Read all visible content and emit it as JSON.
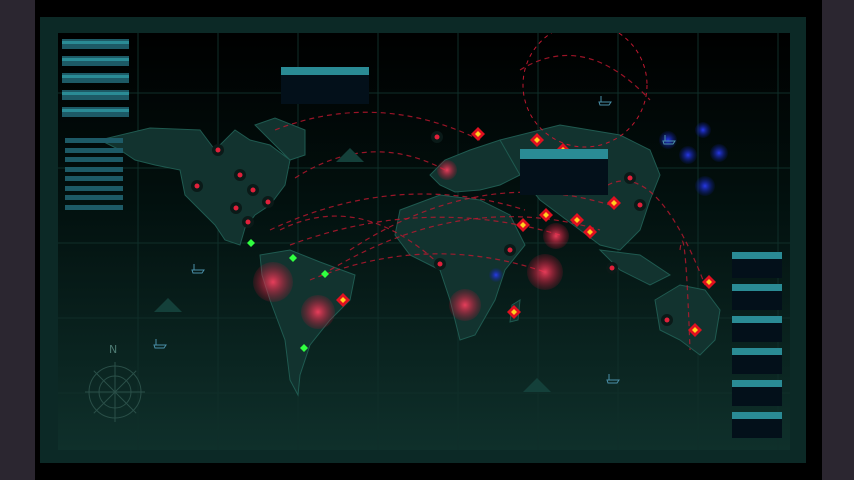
{
  "compass": {
    "label": "N"
  },
  "colors": {
    "frame": "#0c2926",
    "land": "#12332f",
    "coast": "#1f5a50",
    "threat": "#e0203a",
    "route": "#c01830",
    "friendly": "#2030e0",
    "waypoint": "#30ff40",
    "panel": "#1d5a66"
  }
}
